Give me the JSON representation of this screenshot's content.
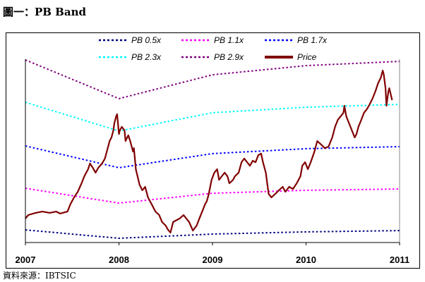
{
  "title": "圖一：PB Band",
  "source": "資料來源：IBTSIC",
  "chart_data": {
    "type": "line",
    "title": "PB Band",
    "xlabel": "",
    "ylabel": "",
    "xlim": [
      2007,
      2011
    ],
    "ylim": [
      0,
      100
    ],
    "x_ticks": [
      2007,
      2008,
      2009,
      2010,
      2011
    ],
    "x_tick_labels": [
      "2007",
      "2008",
      "2009",
      "2010",
      "2011"
    ],
    "grid": false,
    "legend_position": "top-center",
    "series": [
      {
        "name": "PB 0.5x",
        "color": "#000080",
        "style": "dotted",
        "x": [
          2007,
          2008,
          2009,
          2010,
          2011
        ],
        "values": [
          6.9,
          2.3,
          4.6,
          5.8,
          6.5
        ]
      },
      {
        "name": "PB 1.1x",
        "color": "#ff00ff",
        "style": "dotted",
        "x": [
          2007,
          2008,
          2009,
          2010,
          2011
        ],
        "values": [
          29.6,
          21.5,
          26.9,
          28.5,
          29.2
        ]
      },
      {
        "name": "PB 1.7x",
        "color": "#0000ff",
        "style": "dotted",
        "x": [
          2007,
          2008,
          2009,
          2010,
          2011
        ],
        "values": [
          52.7,
          40.8,
          48.5,
          51.2,
          52.3
        ]
      },
      {
        "name": "PB 2.3x",
        "color": "#00ffff",
        "style": "dotted",
        "x": [
          2007,
          2008,
          2009,
          2010,
          2011
        ],
        "values": [
          76.5,
          60.8,
          70.8,
          73.8,
          75.4
        ]
      },
      {
        "name": "PB 2.9x",
        "color": "#800080",
        "style": "dotted",
        "x": [
          2007,
          2008,
          2009,
          2010,
          2011
        ],
        "values": [
          99.6,
          78.5,
          91.5,
          96.5,
          98.8
        ]
      },
      {
        "name": "Price",
        "color": "#800000",
        "style": "solid",
        "x": [
          2007.0,
          2007.03,
          2007.11,
          2007.18,
          2007.26,
          2007.33,
          2007.37,
          2007.45,
          2007.48,
          2007.52,
          2007.56,
          2007.6,
          2007.63,
          2007.67,
          2007.69,
          2007.72,
          2007.75,
          2007.78,
          2007.82,
          2007.85,
          2007.88,
          2007.9,
          2007.92,
          2007.94,
          2007.95,
          2007.97,
          2007.98,
          2008.0,
          2008.01,
          2008.03,
          2008.06,
          2008.07,
          2008.1,
          2008.12,
          2008.15,
          2008.16,
          2008.18,
          2008.22,
          2008.25,
          2008.28,
          2008.31,
          2008.35,
          2008.39,
          2008.43,
          2008.46,
          2008.5,
          2008.52,
          2008.55,
          2008.58,
          2008.62,
          2008.65,
          2008.69,
          2008.72,
          2008.75,
          2008.79,
          2008.83,
          2008.86,
          2008.89,
          2008.92,
          2008.94,
          2008.96,
          2008.99,
          2009.02,
          2009.05,
          2009.07,
          2009.1,
          2009.13,
          2009.16,
          2009.18,
          2009.22,
          2009.24,
          2009.28,
          2009.31,
          2009.34,
          2009.37,
          2009.4,
          2009.43,
          2009.46,
          2009.49,
          2009.52,
          2009.54,
          2009.57,
          2009.6,
          2009.63,
          2009.67,
          2009.71,
          2009.75,
          2009.78,
          2009.82,
          2009.86,
          2009.9,
          2009.94,
          2009.96,
          2009.99,
          2010.02,
          2010.05,
          2010.09,
          2010.12,
          2010.16,
          2010.2,
          2010.24,
          2010.28,
          2010.31,
          2010.34,
          2010.37,
          2010.4,
          2010.41,
          2010.43,
          2010.46,
          2010.49,
          2010.52,
          2010.54,
          2010.56,
          2010.59,
          2010.62,
          2010.65,
          2010.68,
          2010.71,
          2010.74,
          2010.77,
          2010.8,
          2010.82,
          2010.83,
          2010.85,
          2010.86,
          2010.88,
          2010.89,
          2010.92
        ],
        "values": [
          13.1,
          15.0,
          16.2,
          16.9,
          16.2,
          16.9,
          15.8,
          16.9,
          20.8,
          24.6,
          27.7,
          32.3,
          36.2,
          40.0,
          43.1,
          40.8,
          38.1,
          40.8,
          43.1,
          45.8,
          51.5,
          55.4,
          57.3,
          61.2,
          65.0,
          68.8,
          70.0,
          59.2,
          61.2,
          63.1,
          61.2,
          55.4,
          58.5,
          55.4,
          49.6,
          51.5,
          40.0,
          31.5,
          28.5,
          30.4,
          24.6,
          20.8,
          16.9,
          15.0,
          11.2,
          9.2,
          7.3,
          5.4,
          11.2,
          12.3,
          13.1,
          15.0,
          13.1,
          11.2,
          6.5,
          9.2,
          13.1,
          16.9,
          20.8,
          22.7,
          26.5,
          34.2,
          38.1,
          40.0,
          34.2,
          36.2,
          38.1,
          36.2,
          32.3,
          34.2,
          36.2,
          38.1,
          43.8,
          45.8,
          43.8,
          41.9,
          44.6,
          43.8,
          47.7,
          48.5,
          43.8,
          38.1,
          26.5,
          24.6,
          26.5,
          28.5,
          30.4,
          27.7,
          30.4,
          29.2,
          32.3,
          36.2,
          41.9,
          43.8,
          40.0,
          43.8,
          49.6,
          55.4,
          53.5,
          51.5,
          52.3,
          57.3,
          63.1,
          66.9,
          68.8,
          70.8,
          74.6,
          68.8,
          65.0,
          61.2,
          57.3,
          59.2,
          63.1,
          66.9,
          70.8,
          72.7,
          75.4,
          78.5,
          82.3,
          86.9,
          90.0,
          93.8,
          91.9,
          84.2,
          74.6,
          82.3,
          84.2,
          77.7
        ]
      }
    ]
  }
}
